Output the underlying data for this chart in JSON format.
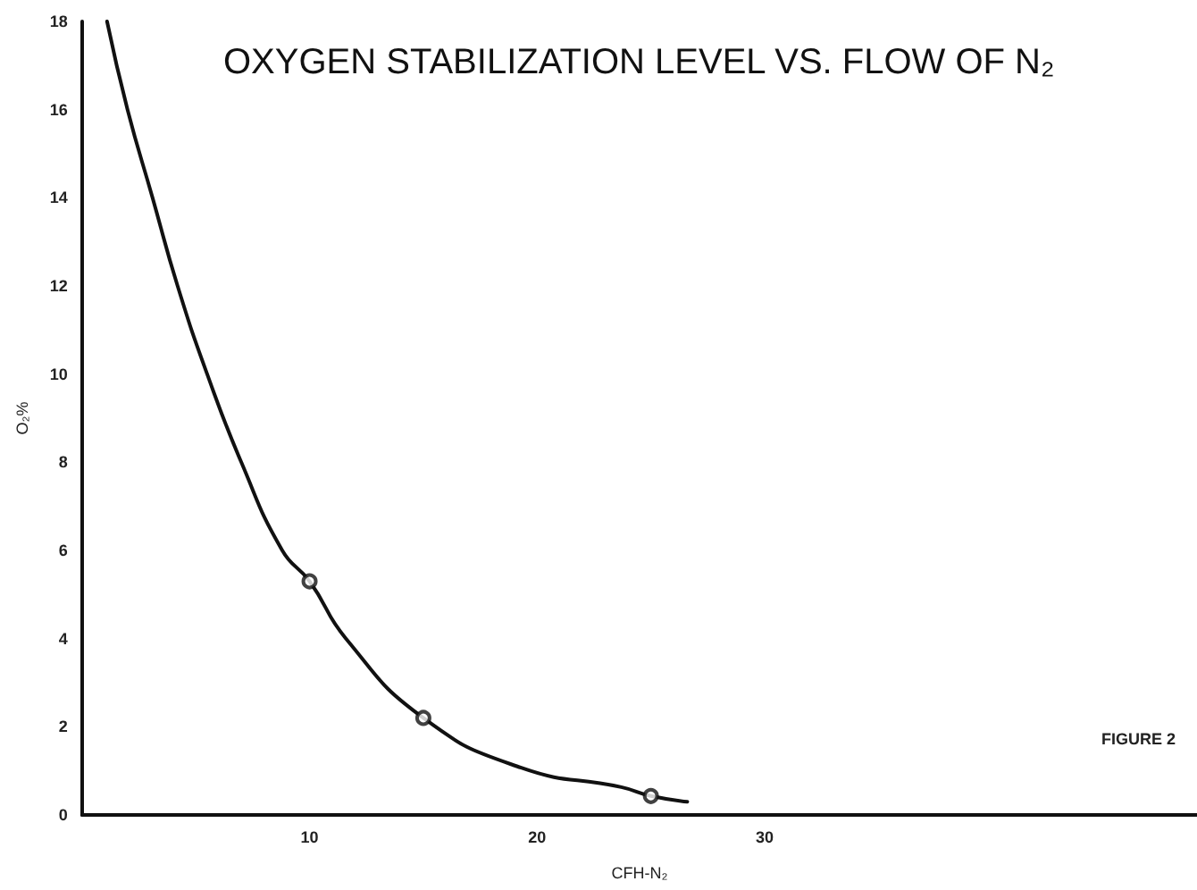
{
  "chart_data": {
    "type": "line",
    "title": "OXYGEN STABILIZATION LEVEL VS. FLOW OF N₂",
    "xlabel": "CFH-N₂",
    "ylabel": "O₂%",
    "annotations": [
      "FIGURE 2"
    ],
    "xlim": [
      0,
      49
    ],
    "xticks": [
      10,
      20,
      30
    ],
    "ylim": [
      0,
      18
    ],
    "yticks": [
      0,
      2,
      4,
      6,
      8,
      10,
      12,
      14,
      16,
      18
    ],
    "grid": false,
    "series": [
      {
        "color": "#111111",
        "marker": "none",
        "line_style": "solid",
        "x": [
          1.1,
          2.0,
          3.1,
          4.2,
          5.5,
          7.0,
          8.8,
          10,
          11.6,
          15,
          19.3,
          23.7,
          25,
          26.6
        ],
        "values": [
          18,
          16,
          14,
          12,
          10,
          8,
          6,
          5.3,
          4,
          2.2,
          1.07,
          0.63,
          0.43,
          0.3
        ]
      },
      {
        "type": "scatter",
        "color": "#111111",
        "marker": "circle",
        "x": [
          10,
          15,
          25
        ],
        "values": [
          5.3,
          2.2,
          0.43
        ]
      }
    ]
  }
}
